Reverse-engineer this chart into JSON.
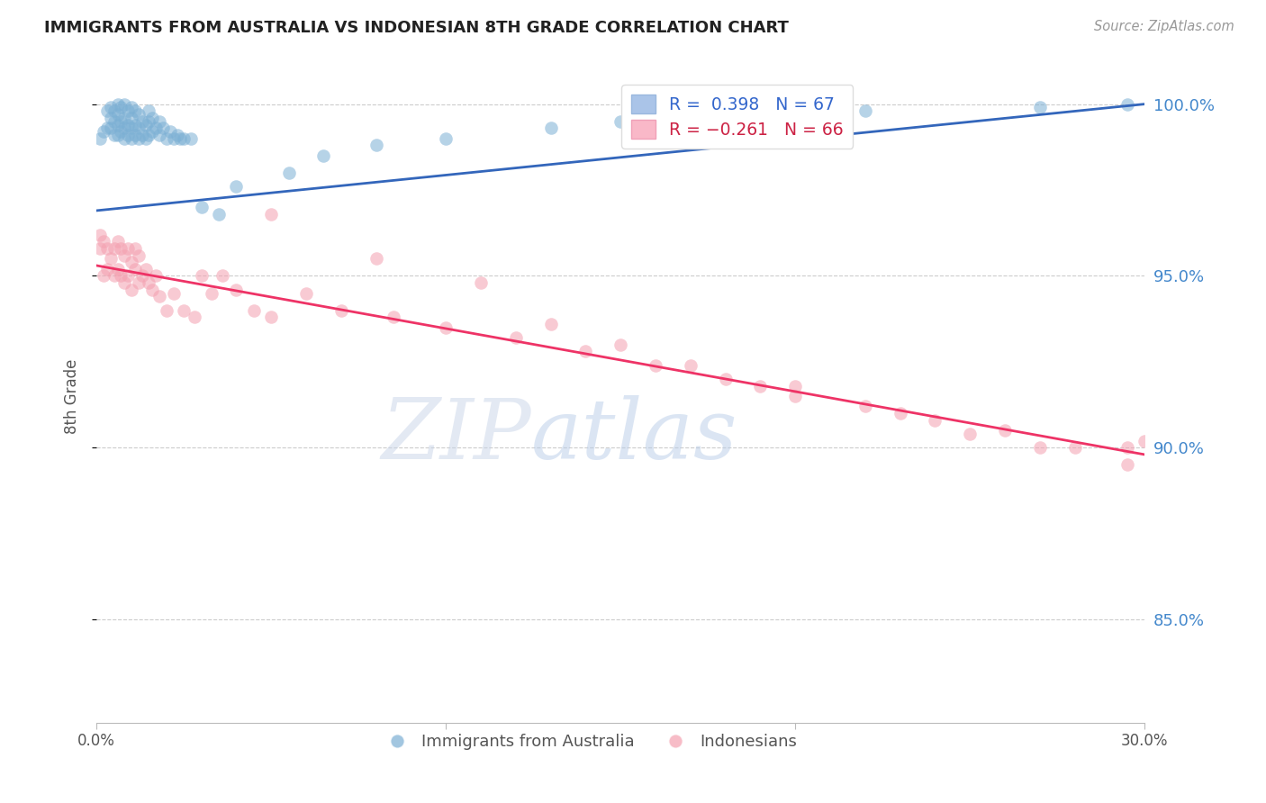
{
  "title": "IMMIGRANTS FROM AUSTRALIA VS INDONESIAN 8TH GRADE CORRELATION CHART",
  "source": "Source: ZipAtlas.com",
  "ylabel": "8th Grade",
  "ytick_labels": [
    "100.0%",
    "95.0%",
    "90.0%",
    "85.0%"
  ],
  "ytick_values": [
    1.0,
    0.95,
    0.9,
    0.85
  ],
  "legend_text_blue": "R =  0.398   N = 67",
  "legend_text_pink": "R = −0.261   N = 66",
  "blue_color": "#7bafd4",
  "pink_color": "#f4a0b0",
  "blue_line_color": "#3366bb",
  "pink_line_color": "#ee3366",
  "legend_color_blue": "#aac4e8",
  "legend_color_pink": "#f9b8c8",
  "background_color": "#ffffff",
  "grid_color": "#cccccc",
  "title_color": "#222222",
  "tick_label_color_right": "#4488cc",
  "axis_label_color": "#555555",
  "blue_scatter_x": [
    0.001,
    0.002,
    0.003,
    0.003,
    0.004,
    0.004,
    0.004,
    0.005,
    0.005,
    0.005,
    0.006,
    0.006,
    0.006,
    0.006,
    0.007,
    0.007,
    0.007,
    0.008,
    0.008,
    0.008,
    0.008,
    0.009,
    0.009,
    0.009,
    0.01,
    0.01,
    0.01,
    0.01,
    0.011,
    0.011,
    0.011,
    0.012,
    0.012,
    0.012,
    0.013,
    0.013,
    0.014,
    0.014,
    0.015,
    0.015,
    0.015,
    0.016,
    0.016,
    0.017,
    0.018,
    0.018,
    0.019,
    0.02,
    0.021,
    0.022,
    0.023,
    0.024,
    0.025,
    0.027,
    0.03,
    0.035,
    0.04,
    0.055,
    0.065,
    0.08,
    0.1,
    0.13,
    0.15,
    0.18,
    0.22,
    0.27,
    0.295
  ],
  "blue_scatter_y": [
    0.99,
    0.992,
    0.993,
    0.998,
    0.993,
    0.996,
    0.999,
    0.991,
    0.995,
    0.998,
    0.991,
    0.994,
    0.997,
    1.0,
    0.992,
    0.995,
    0.999,
    0.99,
    0.993,
    0.996,
    1.0,
    0.991,
    0.994,
    0.998,
    0.99,
    0.993,
    0.996,
    0.999,
    0.991,
    0.994,
    0.998,
    0.99,
    0.993,
    0.997,
    0.991,
    0.995,
    0.99,
    0.994,
    0.991,
    0.995,
    0.998,
    0.992,
    0.996,
    0.993,
    0.991,
    0.995,
    0.993,
    0.99,
    0.992,
    0.99,
    0.991,
    0.99,
    0.99,
    0.99,
    0.97,
    0.968,
    0.976,
    0.98,
    0.985,
    0.988,
    0.99,
    0.993,
    0.995,
    0.997,
    0.998,
    0.999,
    1.0
  ],
  "pink_scatter_x": [
    0.001,
    0.001,
    0.002,
    0.002,
    0.003,
    0.003,
    0.004,
    0.005,
    0.005,
    0.006,
    0.006,
    0.007,
    0.007,
    0.008,
    0.008,
    0.009,
    0.009,
    0.01,
    0.01,
    0.011,
    0.011,
    0.012,
    0.012,
    0.013,
    0.014,
    0.015,
    0.016,
    0.017,
    0.018,
    0.02,
    0.022,
    0.025,
    0.028,
    0.03,
    0.033,
    0.036,
    0.04,
    0.045,
    0.05,
    0.06,
    0.07,
    0.085,
    0.1,
    0.12,
    0.14,
    0.16,
    0.18,
    0.2,
    0.23,
    0.26,
    0.28,
    0.295,
    0.05,
    0.08,
    0.11,
    0.15,
    0.19,
    0.22,
    0.24,
    0.27,
    0.17,
    0.2,
    0.295,
    0.13,
    0.25,
    0.3
  ],
  "pink_scatter_y": [
    0.958,
    0.962,
    0.95,
    0.96,
    0.952,
    0.958,
    0.955,
    0.95,
    0.958,
    0.952,
    0.96,
    0.95,
    0.958,
    0.948,
    0.956,
    0.95,
    0.958,
    0.946,
    0.954,
    0.952,
    0.958,
    0.948,
    0.956,
    0.95,
    0.952,
    0.948,
    0.946,
    0.95,
    0.944,
    0.94,
    0.945,
    0.94,
    0.938,
    0.95,
    0.945,
    0.95,
    0.946,
    0.94,
    0.938,
    0.945,
    0.94,
    0.938,
    0.935,
    0.932,
    0.928,
    0.924,
    0.92,
    0.915,
    0.91,
    0.905,
    0.9,
    0.895,
    0.968,
    0.955,
    0.948,
    0.93,
    0.918,
    0.912,
    0.908,
    0.9,
    0.924,
    0.918,
    0.9,
    0.936,
    0.904,
    0.902
  ],
  "blue_line_x": [
    0.0,
    0.3
  ],
  "blue_line_y": [
    0.969,
    1.0
  ],
  "pink_line_x": [
    0.0,
    0.3
  ],
  "pink_line_y": [
    0.953,
    0.898
  ],
  "xlim": [
    0.0,
    0.3
  ],
  "ylim": [
    0.82,
    1.01
  ]
}
